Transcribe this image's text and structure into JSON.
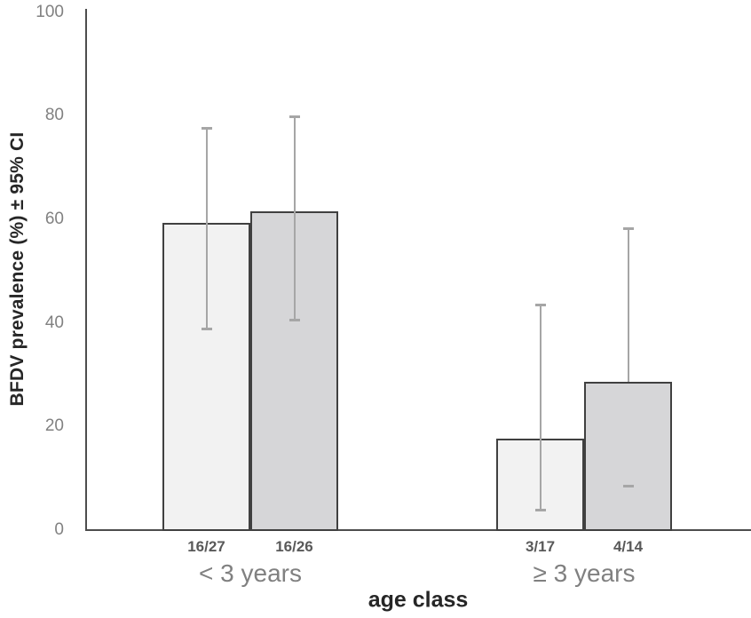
{
  "chart_data": {
    "type": "bar",
    "title": "",
    "xlabel": "age class",
    "ylabel": "BFDV prevalence (%) ± 95% CI",
    "ylim": [
      0,
      100
    ],
    "yticks": [
      0,
      20,
      40,
      60,
      80,
      100
    ],
    "grid": false,
    "legend": false,
    "error_bars": "95% CI",
    "groups": [
      {
        "label": "< 3 years",
        "bars": [
          {
            "count_label": "16/27",
            "series": "light",
            "value": 59.3,
            "ci_low": 38.8,
            "ci_high": 77.6,
            "error_line_visible_in_bar": true
          },
          {
            "count_label": "16/26",
            "series": "dark",
            "value": 61.5,
            "ci_low": 40.6,
            "ci_high": 79.8,
            "error_line_visible_in_bar": true
          }
        ]
      },
      {
        "label": "≥ 3 years",
        "bars": [
          {
            "count_label": "3/17",
            "series": "light",
            "value": 17.6,
            "ci_low": 3.8,
            "ci_high": 43.4,
            "error_line_visible_in_bar": true
          },
          {
            "count_label": "4/14",
            "series": "dark",
            "value": 28.6,
            "ci_low": 8.4,
            "ci_high": 58.1,
            "error_line_visible_in_bar": false
          }
        ]
      }
    ],
    "colors": {
      "background": "#ffffff",
      "light_bar_fill": "#f2f2f2",
      "dark_bar_fill": "#d6d6d8",
      "bar_border": "#404040",
      "error_bar": "#a6a6a6",
      "axis_line": "#4d4d4d",
      "tick_label": "#818181",
      "count_label": "#595959",
      "group_label": "#808080",
      "axis_title": "#262626"
    }
  }
}
